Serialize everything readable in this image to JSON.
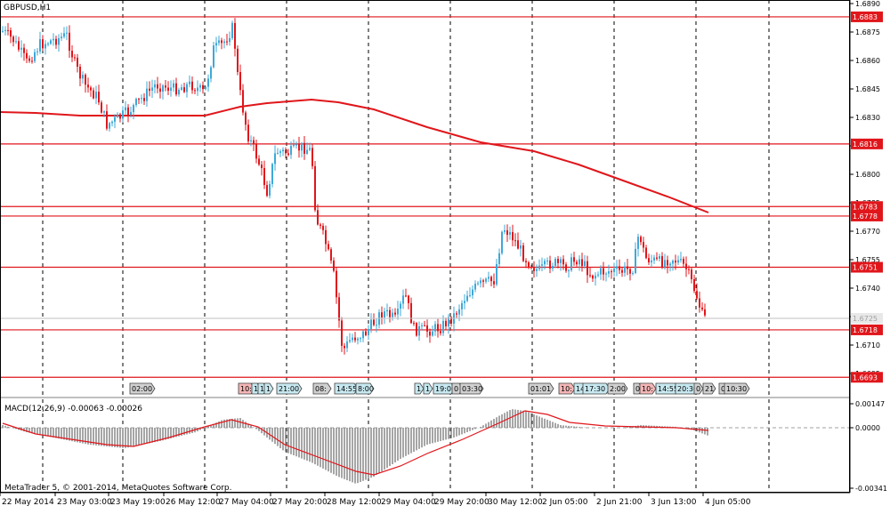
{
  "symbol_title": "GBPUSD,H1",
  "price_axis": {
    "ticks": [
      "1.6890",
      "1.6875",
      "1.6860",
      "1.6845",
      "1.6830",
      "1.6815",
      "1.6800",
      "1.6785",
      "1.6770",
      "1.6755",
      "1.6740",
      "1.6725",
      "1.6710",
      "1.6695"
    ],
    "current_price": "1.6725"
  },
  "level_lines": [
    {
      "label": "1.6883",
      "price": 1.6883
    },
    {
      "label": "1.6816",
      "price": 1.6816
    },
    {
      "label": "1.6783",
      "price": 1.6783
    },
    {
      "label": "1.6778",
      "price": 1.6778
    },
    {
      "label": "1.6751",
      "price": 1.6751
    },
    {
      "label": "1.6718",
      "price": 1.6718
    },
    {
      "label": "1.6693",
      "price": 1.6693
    }
  ],
  "event_markers": [
    {
      "text": "02:00",
      "color": "#d0d0d0"
    },
    {
      "text": "10:",
      "color": "#f4b6b6"
    },
    {
      "text": "1",
      "color": "#c7e8f0"
    },
    {
      "text": "1",
      "color": "#c7e8f0"
    },
    {
      "text": "1",
      "color": "#c7e8f0"
    },
    {
      "text": "21:00",
      "color": "#c7e8f0"
    },
    {
      "text": "08:",
      "color": "#d0d0d0"
    },
    {
      "text": "14:55",
      "color": "#c7e8f0"
    },
    {
      "text": "8:00",
      "color": "#c7e8f0"
    },
    {
      "text": "1",
      "color": "#c7e8f0"
    },
    {
      "text": "1",
      "color": "#c7e8f0"
    },
    {
      "text": "19:00",
      "color": "#c7e8f0"
    },
    {
      "text": "0",
      "color": "#d0d0d0"
    },
    {
      "text": "03:30",
      "color": "#d0d0d0"
    },
    {
      "text": "01:01",
      "color": "#d0d0d0"
    },
    {
      "text": "10:",
      "color": "#f4b6b6"
    },
    {
      "text": "14:",
      "color": "#c7e8f0"
    },
    {
      "text": "17:30",
      "color": "#c7e8f0"
    },
    {
      "text": "2:00",
      "color": "#d0d0d0"
    },
    {
      "text": "0",
      "color": "#d0d0d0"
    },
    {
      "text": "10:",
      "color": "#f4b6b6"
    },
    {
      "text": "14:55",
      "color": "#c7e8f0"
    },
    {
      "text": "20:30",
      "color": "#c7e8f0"
    },
    {
      "text": "0",
      "color": "#d0d0d0"
    },
    {
      "text": "21",
      "color": "#d0d0d0"
    },
    {
      "text": "0",
      "color": "#d0d0d0"
    },
    {
      "text": "10:30",
      "color": "#d0d0d0"
    }
  ],
  "indicator": {
    "label": "MACD(12,26,9) -0.00063 -0.00026",
    "ticks": [
      "0.00147",
      "0.0000",
      "-0.00341"
    ]
  },
  "copyright": "MetaTrader 5, © 2001-2014, MetaQuotes Software Corp.",
  "time_axis": [
    "22 May 2014",
    "23 May 03:00",
    "23 May 19:00",
    "26 May 12:00",
    "27 May 04:00",
    "27 May 20:00",
    "28 May 12:00",
    "29 May 04:00",
    "29 May 20:00",
    "30 May 12:00",
    "2 Jun 05:00",
    "2 Jun 21:00",
    "3 Jun 13:00",
    "4 Jun 05:00"
  ],
  "colors": {
    "bull": "#3fa8d8",
    "bear": "#e0161b",
    "ma": "#e0161b",
    "level": "#e0161b",
    "grid": "#000000",
    "macd_hist": "#808080",
    "macd_signal": "#e0161b"
  },
  "chart_data": {
    "type": "candlestick",
    "symbol": "GBPUSD",
    "timeframe": "H1",
    "y_range": [
      1.6687,
      1.6895
    ],
    "key_points": [
      {
        "t": "22 May 2014",
        "close": 1.6875
      },
      {
        "t": "23 May 19:00",
        "close": 1.6825
      },
      {
        "t": "26 May 12:00",
        "close": 1.6845
      },
      {
        "t": "27 May 04:00",
        "close": 1.686
      },
      {
        "t": "27 May 20:00",
        "close": 1.6805
      },
      {
        "t": "28 May 12:00",
        "close": 1.6705
      },
      {
        "t": "29 May 04:00",
        "close": 1.6718
      },
      {
        "t": "29 May 20:00",
        "close": 1.6735
      },
      {
        "t": "30 May 12:00",
        "close": 1.6765
      },
      {
        "t": "2 Jun 05:00",
        "close": 1.6748
      },
      {
        "t": "2 Jun 21:00",
        "close": 1.6752
      },
      {
        "t": "3 Jun 13:00",
        "close": 1.6745
      },
      {
        "t": "4 Jun 05:00",
        "close": 1.6725
      }
    ],
    "moving_average": [
      {
        "t": "22 May 2014",
        "v": 1.683
      },
      {
        "t": "27 May 04:00",
        "v": 1.6831
      },
      {
        "t": "28 May 12:00",
        "v": 1.6838
      },
      {
        "t": "30 May 12:00",
        "v": 1.6812
      },
      {
        "t": "2 Jun 21:00",
        "v": 1.6795
      },
      {
        "t": "4 Jun 05:00",
        "v": 1.6781
      }
    ],
    "macd": {
      "params": "12,26,9",
      "macd": -0.00063,
      "signal": -0.00026,
      "range": [
        -0.00341,
        0.00147
      ]
    }
  }
}
